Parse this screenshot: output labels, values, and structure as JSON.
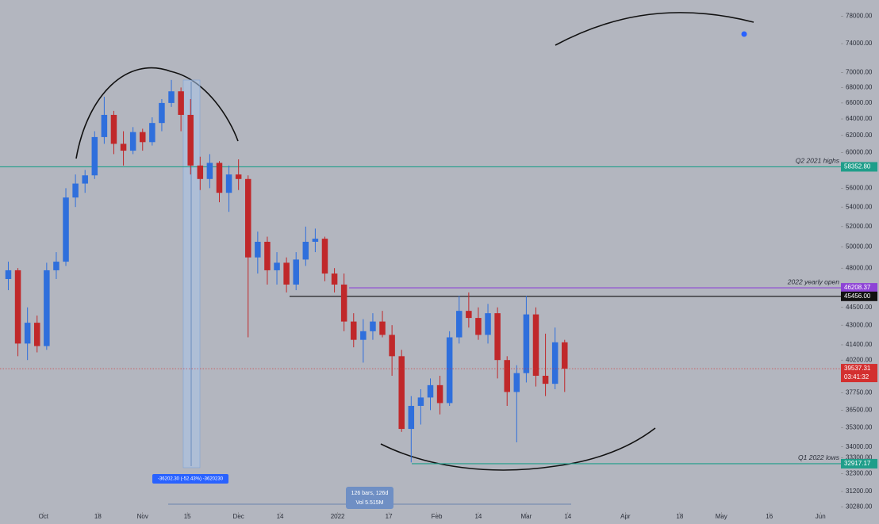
{
  "chart_data": {
    "type": "candlestick",
    "log_scale": true,
    "grid": false,
    "up_color": "#2f6fdc",
    "down_color": "#c0282a",
    "xlim": [
      -13.6,
      249.4
    ],
    "xticks": [
      {
        "value": 0,
        "label": "Oct"
      },
      {
        "value": 17,
        "label": "18"
      },
      {
        "value": 31,
        "label": "Nov"
      },
      {
        "value": 45,
        "label": "15"
      },
      {
        "value": 61,
        "label": "Dec"
      },
      {
        "value": 74,
        "label": "14"
      },
      {
        "value": 92,
        "label": "2022"
      },
      {
        "value": 108,
        "label": "17"
      },
      {
        "value": 123,
        "label": "Feb"
      },
      {
        "value": 136,
        "label": "14"
      },
      {
        "value": 151,
        "label": "Mar"
      },
      {
        "value": 164,
        "label": "14"
      },
      {
        "value": 182,
        "label": "Apr"
      },
      {
        "value": 199,
        "label": "18"
      },
      {
        "value": 212,
        "label": "May"
      },
      {
        "value": 227,
        "label": "16"
      },
      {
        "value": 243,
        "label": "Jun"
      }
    ],
    "ylim": [
      29800,
      80500
    ],
    "yticks": [
      {
        "value": 78000,
        "label": "78000.00"
      },
      {
        "value": 74000,
        "label": "74000.00"
      },
      {
        "value": 70000,
        "label": "70000.00"
      },
      {
        "value": 68000,
        "label": "68000.00"
      },
      {
        "value": 66000,
        "label": "66000.00"
      },
      {
        "value": 64000,
        "label": "64000.00"
      },
      {
        "value": 62000,
        "label": "62000.00"
      },
      {
        "value": 60000,
        "label": "60000.00"
      },
      {
        "value": 56000,
        "label": "56000.00"
      },
      {
        "value": 54000,
        "label": "54000.00"
      },
      {
        "value": 52000,
        "label": "52000.00"
      },
      {
        "value": 50000,
        "label": "50000.00"
      },
      {
        "value": 48000,
        "label": "48000.00"
      },
      {
        "value": 44500,
        "label": "44500.00"
      },
      {
        "value": 43000,
        "label": "43000.00"
      },
      {
        "value": 41400,
        "label": "41400.00"
      },
      {
        "value": 40200,
        "label": "40200.00"
      },
      {
        "value": 37750,
        "label": "37750.00"
      },
      {
        "value": 36500,
        "label": "36500.00"
      },
      {
        "value": 35300,
        "label": "35300.00"
      },
      {
        "value": 34000,
        "label": "34000.00"
      },
      {
        "value": 33300,
        "label": "33300.00"
      },
      {
        "value": 32300,
        "label": "32300.00"
      },
      {
        "value": 31200,
        "label": "31200.00"
      },
      {
        "value": 30280,
        "label": "30280.00"
      }
    ],
    "x": [
      -11,
      -8,
      -5,
      -2,
      1,
      4,
      7,
      10,
      13,
      16,
      19,
      22,
      25,
      28,
      31,
      34,
      37,
      40,
      43,
      46,
      49,
      52,
      55,
      58,
      61,
      64,
      67,
      70,
      73,
      76,
      79,
      82,
      85,
      88,
      91,
      94,
      97,
      100,
      103,
      106,
      109,
      112,
      115,
      118,
      121,
      124,
      127,
      130,
      133,
      136,
      139,
      142,
      145,
      148,
      151,
      154,
      157,
      160,
      163
    ],
    "open": [
      47000,
      47800,
      41500,
      43200,
      41300,
      47800,
      48600,
      55000,
      56500,
      57400,
      61800,
      64500,
      61000,
      60200,
      62400,
      61200,
      63500,
      66000,
      67500,
      64500,
      58500,
      57000,
      58800,
      55500,
      57500,
      57000,
      49000,
      50500,
      47800,
      48500,
      46500,
      48800,
      50500,
      50800,
      47500,
      46500,
      43300,
      41800,
      42500,
      43300,
      42200,
      40500,
      35200,
      36800,
      37400,
      38300,
      37000,
      42000,
      44200,
      43600,
      42200,
      44000,
      40200,
      37800,
      39200,
      43900,
      39000,
      38400,
      41600
    ],
    "high": [
      48600,
      48000,
      44500,
      43800,
      48500,
      49500,
      56000,
      57500,
      58000,
      62500,
      66800,
      65000,
      62500,
      63000,
      62800,
      64200,
      66500,
      69000,
      68000,
      66500,
      59500,
      59800,
      59000,
      58500,
      59200,
      57400,
      51500,
      51000,
      49500,
      49000,
      49500,
      52000,
      51800,
      51000,
      48000,
      47500,
      44000,
      43500,
      44000,
      44200,
      43000,
      41000,
      37500,
      38000,
      38800,
      39000,
      42500,
      45500,
      45800,
      44500,
      44800,
      44500,
      40500,
      39800,
      45500,
      44500,
      42300,
      42800,
      41800
    ],
    "low": [
      46000,
      40500,
      40200,
      40800,
      41000,
      47000,
      48200,
      54000,
      55500,
      57000,
      61000,
      59800,
      58500,
      59800,
      60200,
      60800,
      62500,
      65500,
      62500,
      57500,
      55800,
      56000,
      54500,
      53500,
      55800,
      42000,
      47500,
      46500,
      46500,
      45800,
      46000,
      48200,
      49500,
      46800,
      45800,
      42500,
      41200,
      40000,
      41800,
      42000,
      39000,
      35000,
      33000,
      35500,
      36500,
      36200,
      36800,
      41500,
      42800,
      41800,
      41500,
      38800,
      36800,
      34300,
      38500,
      38200,
      37500,
      38000,
      37800
    ],
    "close": [
      47800,
      41500,
      43200,
      41300,
      47800,
      48600,
      55000,
      56500,
      57400,
      61800,
      64500,
      61000,
      60200,
      62400,
      61200,
      63500,
      66000,
      67500,
      64500,
      58500,
      57000,
      58800,
      55500,
      57500,
      57000,
      49000,
      50500,
      47800,
      48500,
      46500,
      48800,
      50500,
      50800,
      47500,
      46500,
      43300,
      41800,
      42500,
      43300,
      42200,
      40500,
      35200,
      36800,
      37400,
      38300,
      37000,
      42000,
      44200,
      43600,
      42200,
      44000,
      40200,
      37800,
      39200,
      43900,
      39000,
      38400,
      41600,
      39537.31
    ],
    "countdown": "03:41:32",
    "levels": [
      {
        "value": 58352.8,
        "label": "58352.80",
        "name": "Q2 2021 highs",
        "color": "#1f9e8a"
      },
      {
        "value": 46208.37,
        "name": "2022 yearly open",
        "color": "#8e44d6"
      },
      {
        "value": 45456,
        "label": "45456.00",
        "color": "#111111"
      },
      {
        "value": 32917.17,
        "name": "Q1 2022 lows",
        "color": "#1f9e8a"
      }
    ],
    "measure_label": "-36202.30 (-52.43%) -3620230",
    "range_label": [
      "126 bars, 126d",
      "Vol 5.515M"
    ]
  }
}
